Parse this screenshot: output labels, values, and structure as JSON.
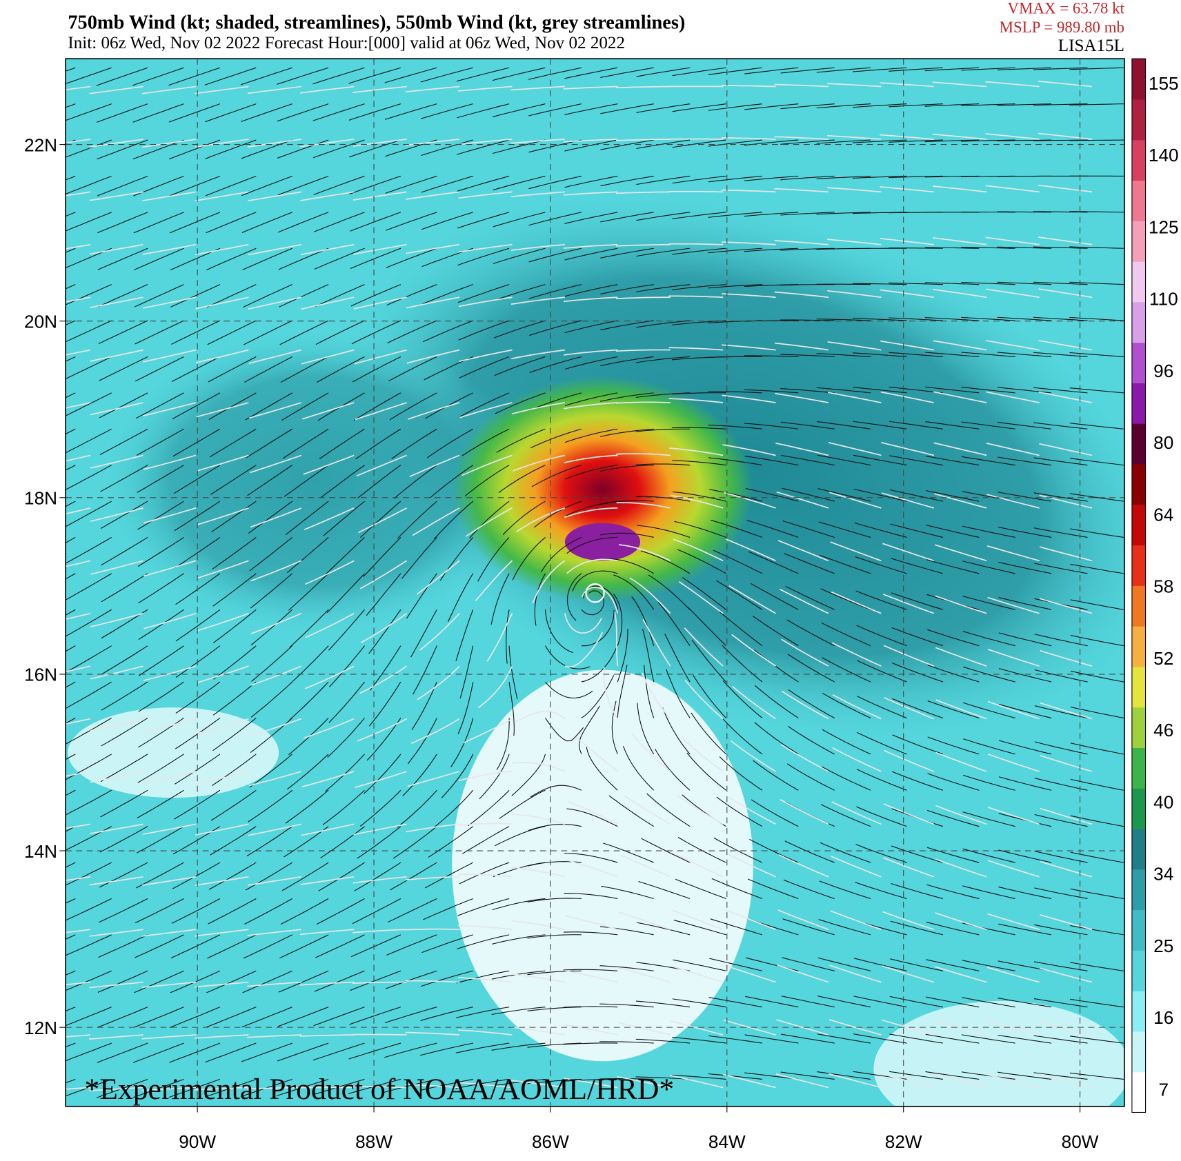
{
  "header": {
    "title": "750mb Wind (kt; shaded, streamlines), 550mb Wind (kt, grey streamlines)",
    "subtitle": "Init: 06z Wed, Nov 02 2022  Forecast Hour:[000]  valid at 06z Wed, Nov 02 2022",
    "vmax": "VMAX =   63.78 kt",
    "mslp": "MSLP =  989.80 mb",
    "storm": "LISA15L"
  },
  "map": {
    "lon_labels": [
      "90W",
      "88W",
      "86W",
      "84W",
      "82W",
      "80W"
    ],
    "lat_labels": [
      "22N",
      "20N",
      "18N",
      "16N",
      "14N",
      "12N"
    ],
    "watermark": "*Experimental Product of NOAA/AOML/HRD*"
  },
  "colorbar": {
    "labels": [
      155,
      140,
      125,
      110,
      96,
      80,
      64,
      58,
      52,
      46,
      40,
      34,
      25,
      16,
      7
    ]
  }
}
